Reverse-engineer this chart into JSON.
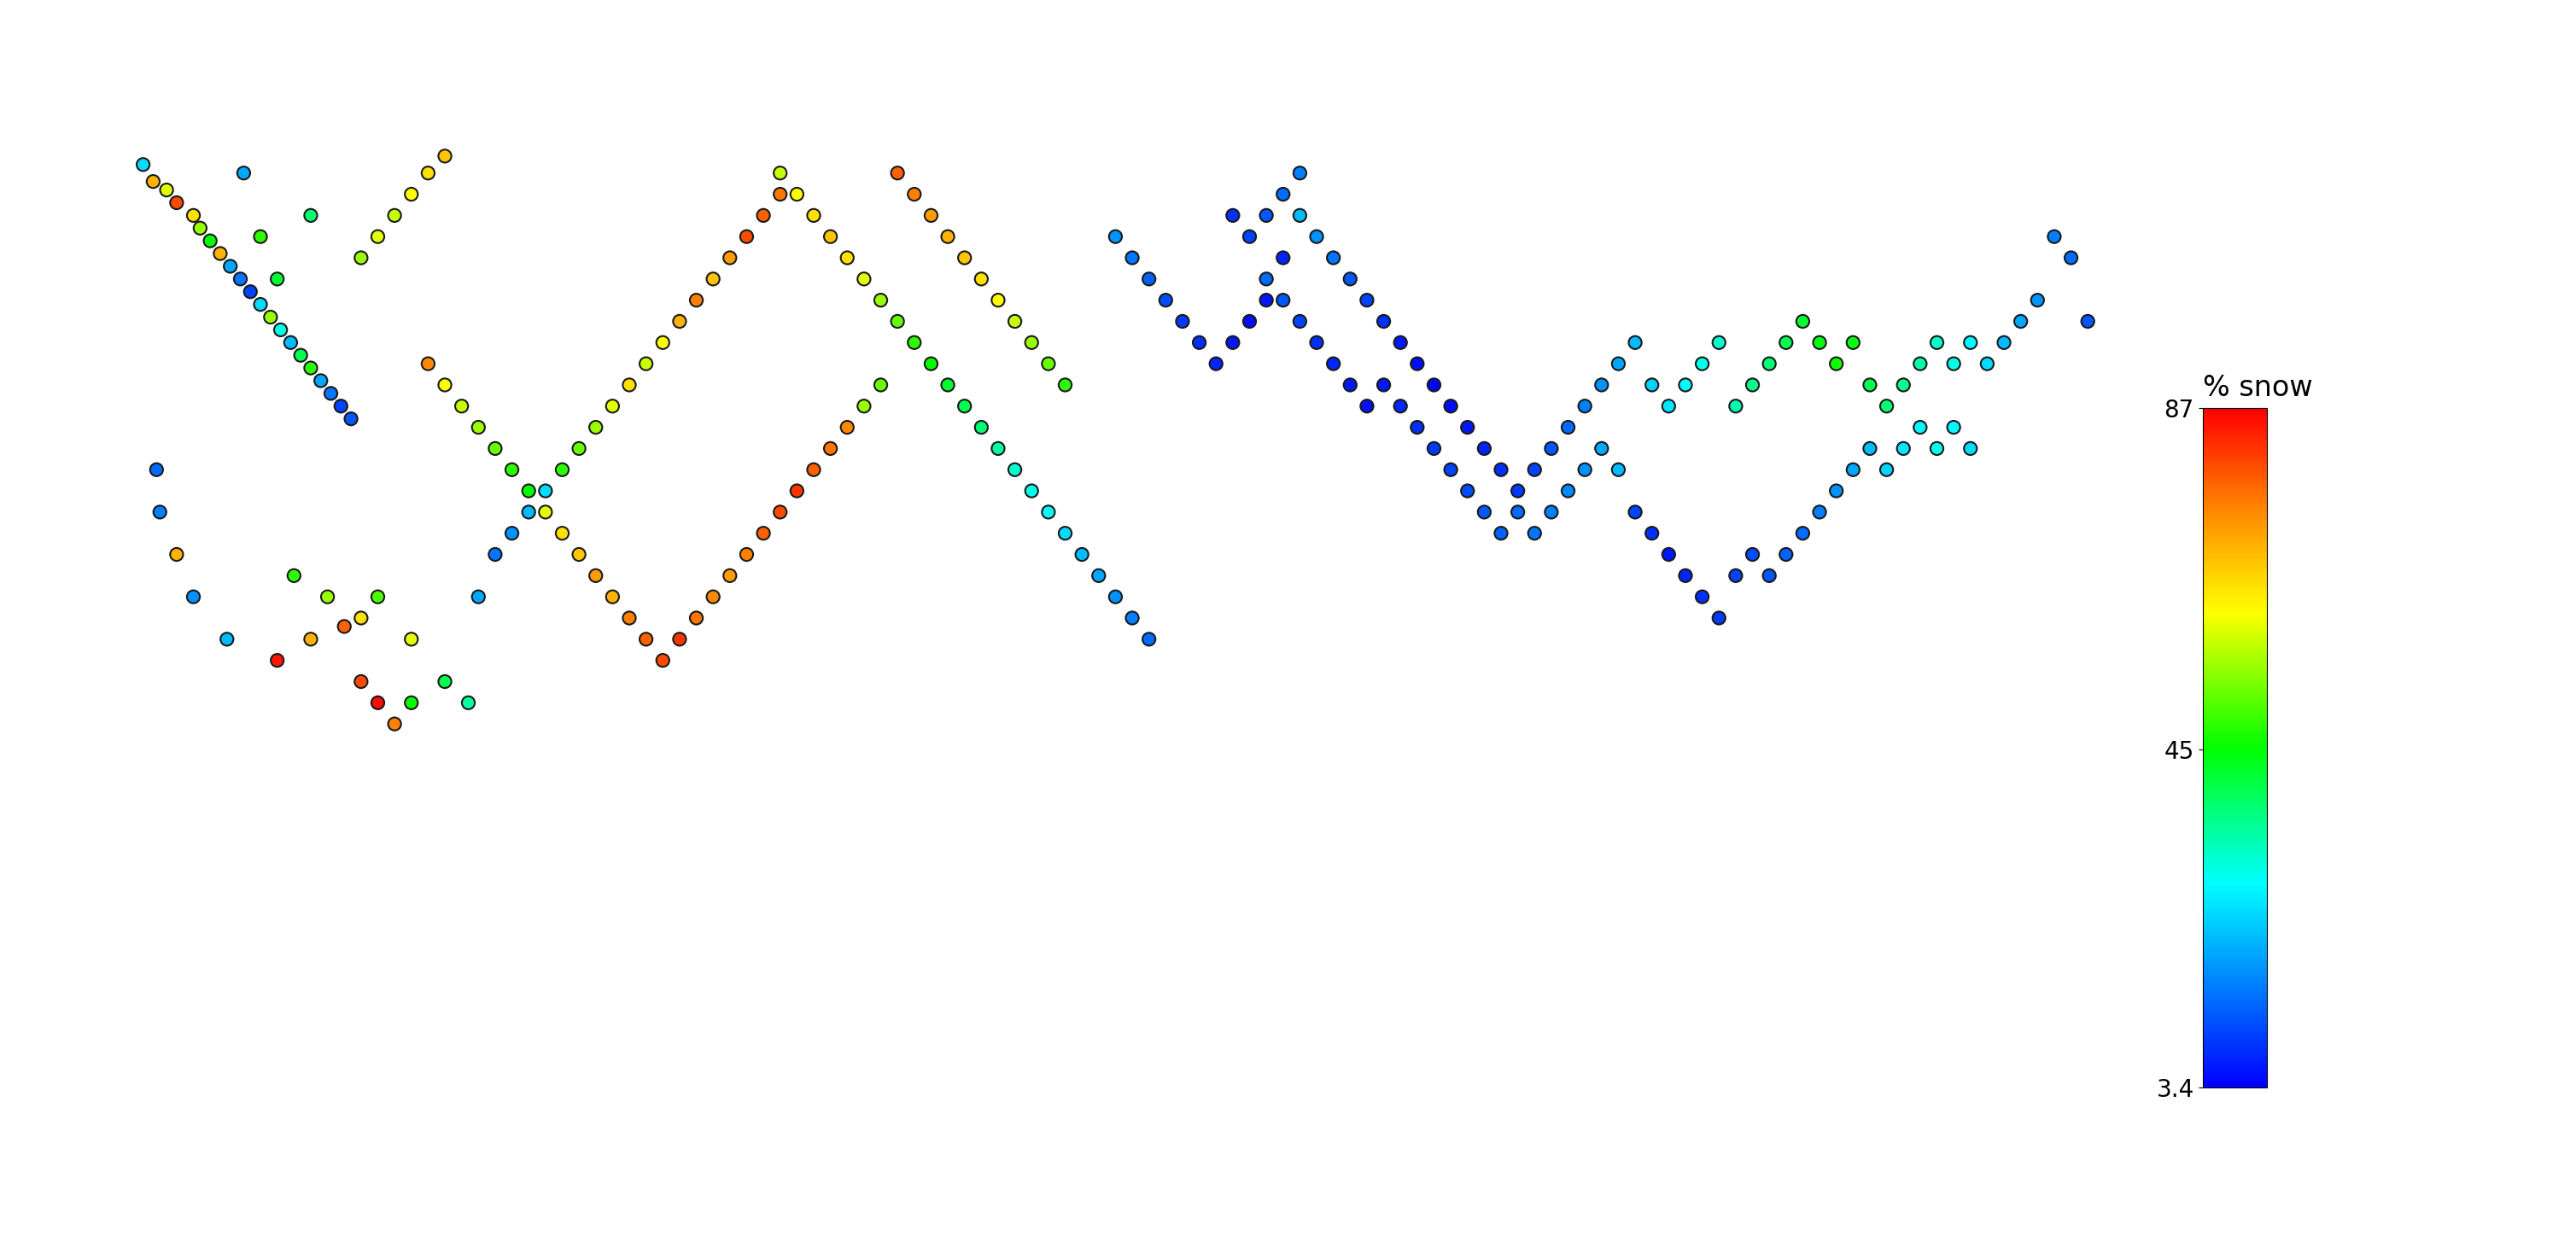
{
  "title": "",
  "colorbar_label": "% snow",
  "colorbar_ticks": [
    3.4,
    45,
    87
  ],
  "colorbar_ticklabels": [
    "3.4",
    "45",
    "87"
  ],
  "vmin": 3.4,
  "vmax": 87,
  "background_color": "#c8c8c8",
  "marker_size": 120,
  "marker_edgecolor": "#1a1a1a",
  "marker_edgewidth": 1.5,
  "map_facecolor": "#c8c8c8",
  "points": [
    [
      -124.5,
      48.7,
      25
    ],
    [
      -124.2,
      48.3,
      70
    ],
    [
      -123.8,
      48.1,
      60
    ],
    [
      -123.5,
      47.8,
      80
    ],
    [
      -123.0,
      47.5,
      65
    ],
    [
      -122.8,
      47.2,
      55
    ],
    [
      -122.5,
      46.9,
      45
    ],
    [
      -122.2,
      46.6,
      70
    ],
    [
      -121.9,
      46.3,
      20
    ],
    [
      -121.6,
      46.0,
      15
    ],
    [
      -121.3,
      45.7,
      10
    ],
    [
      -121.0,
      45.4,
      25
    ],
    [
      -120.7,
      45.1,
      55
    ],
    [
      -120.4,
      44.8,
      30
    ],
    [
      -120.1,
      44.5,
      22
    ],
    [
      -119.8,
      44.2,
      40
    ],
    [
      -119.5,
      43.9,
      48
    ],
    [
      -119.2,
      43.6,
      20
    ],
    [
      -118.9,
      43.3,
      15
    ],
    [
      -118.6,
      43.0,
      10
    ],
    [
      -118.3,
      42.7,
      12
    ],
    [
      -124.1,
      41.5,
      14
    ],
    [
      -124.0,
      40.5,
      16
    ],
    [
      -123.5,
      39.5,
      70
    ],
    [
      -123.0,
      38.5,
      18
    ],
    [
      -122.0,
      37.5,
      22
    ],
    [
      -120.5,
      37.0,
      85
    ],
    [
      -119.5,
      37.5,
      70
    ],
    [
      -118.5,
      37.8,
      78
    ],
    [
      -118.0,
      36.5,
      80
    ],
    [
      -117.5,
      36.0,
      86
    ],
    [
      -117.0,
      35.5,
      75
    ],
    [
      -116.5,
      36.0,
      45
    ],
    [
      -120.0,
      39.0,
      48
    ],
    [
      -119.0,
      38.5,
      55
    ],
    [
      -118.0,
      38.0,
      65
    ],
    [
      -117.5,
      38.5,
      50
    ],
    [
      -116.5,
      37.5,
      60
    ],
    [
      -115.5,
      36.5,
      40
    ],
    [
      -114.8,
      36.0,
      35
    ],
    [
      -114.5,
      38.5,
      20
    ],
    [
      -114.0,
      39.5,
      15
    ],
    [
      -113.5,
      40.0,
      18
    ],
    [
      -113.0,
      40.5,
      22
    ],
    [
      -112.5,
      41.0,
      25
    ],
    [
      -112.0,
      41.5,
      48
    ],
    [
      -111.5,
      42.0,
      52
    ],
    [
      -111.0,
      42.5,
      55
    ],
    [
      -110.5,
      43.0,
      60
    ],
    [
      -110.0,
      43.5,
      65
    ],
    [
      -109.5,
      44.0,
      58
    ],
    [
      -109.0,
      44.5,
      62
    ],
    [
      -108.5,
      45.0,
      70
    ],
    [
      -108.0,
      45.5,
      75
    ],
    [
      -107.5,
      46.0,
      68
    ],
    [
      -107.0,
      46.5,
      72
    ],
    [
      -106.5,
      47.0,
      80
    ],
    [
      -106.0,
      47.5,
      78
    ],
    [
      -105.5,
      48.0,
      76
    ],
    [
      -116.0,
      44.0,
      74
    ],
    [
      -115.5,
      43.5,
      62
    ],
    [
      -115.0,
      43.0,
      58
    ],
    [
      -114.5,
      42.5,
      55
    ],
    [
      -114.0,
      42.0,
      52
    ],
    [
      -113.5,
      41.5,
      48
    ],
    [
      -113.0,
      41.0,
      45
    ],
    [
      -112.5,
      40.5,
      60
    ],
    [
      -112.0,
      40.0,
      65
    ],
    [
      -111.5,
      39.5,
      68
    ],
    [
      -111.0,
      39.0,
      72
    ],
    [
      -110.5,
      38.5,
      70
    ],
    [
      -110.0,
      38.0,
      75
    ],
    [
      -109.5,
      37.5,
      78
    ],
    [
      -109.0,
      37.0,
      80
    ],
    [
      -108.5,
      37.5,
      82
    ],
    [
      -108.0,
      38.0,
      76
    ],
    [
      -107.5,
      38.5,
      74
    ],
    [
      -107.0,
      39.0,
      72
    ],
    [
      -106.5,
      39.5,
      75
    ],
    [
      -106.0,
      40.0,
      78
    ],
    [
      -105.5,
      40.5,
      80
    ],
    [
      -105.0,
      41.0,
      82
    ],
    [
      -104.5,
      41.5,
      78
    ],
    [
      -104.0,
      42.0,
      76
    ],
    [
      -103.5,
      42.5,
      74
    ],
    [
      -103.0,
      43.0,
      55
    ],
    [
      -102.5,
      43.5,
      52
    ],
    [
      -118.0,
      46.5,
      55
    ],
    [
      -117.5,
      47.0,
      60
    ],
    [
      -117.0,
      47.5,
      58
    ],
    [
      -116.5,
      48.0,
      62
    ],
    [
      -116.0,
      48.5,
      65
    ],
    [
      -115.5,
      48.9,
      68
    ],
    [
      -121.5,
      48.5,
      20
    ],
    [
      -121.0,
      47.0,
      48
    ],
    [
      -120.5,
      46.0,
      42
    ],
    [
      -119.5,
      47.5,
      38
    ],
    [
      -105.5,
      48.5,
      58
    ],
    [
      -105.0,
      48.0,
      62
    ],
    [
      -104.5,
      47.5,
      65
    ],
    [
      -104.0,
      47.0,
      68
    ],
    [
      -103.5,
      46.5,
      65
    ],
    [
      -103.0,
      46.0,
      60
    ],
    [
      -102.5,
      45.5,
      55
    ],
    [
      -102.0,
      45.0,
      52
    ],
    [
      -101.5,
      44.5,
      48
    ],
    [
      -101.0,
      44.0,
      45
    ],
    [
      -100.5,
      43.5,
      42
    ],
    [
      -100.0,
      43.0,
      40
    ],
    [
      -99.5,
      42.5,
      38
    ],
    [
      -99.0,
      42.0,
      35
    ],
    [
      -98.5,
      41.5,
      32
    ],
    [
      -98.0,
      41.0,
      30
    ],
    [
      -97.5,
      40.5,
      28
    ],
    [
      -97.0,
      40.0,
      25
    ],
    [
      -96.5,
      39.5,
      22
    ],
    [
      -96.0,
      39.0,
      20
    ],
    [
      -95.5,
      38.5,
      18
    ],
    [
      -95.0,
      38.0,
      16
    ],
    [
      -94.5,
      37.5,
      14
    ],
    [
      -97.0,
      43.5,
      48
    ],
    [
      -97.5,
      44.0,
      52
    ],
    [
      -98.0,
      44.5,
      55
    ],
    [
      -98.5,
      45.0,
      58
    ],
    [
      -99.0,
      45.5,
      62
    ],
    [
      -99.5,
      46.0,
      65
    ],
    [
      -100.0,
      46.5,
      68
    ],
    [
      -100.5,
      47.0,
      70
    ],
    [
      -101.0,
      47.5,
      72
    ],
    [
      -101.5,
      48.0,
      75
    ],
    [
      -102.0,
      48.5,
      78
    ],
    [
      -90.0,
      47.5,
      22
    ],
    [
      -89.5,
      47.0,
      18
    ],
    [
      -89.0,
      46.5,
      15
    ],
    [
      -88.5,
      46.0,
      12
    ],
    [
      -88.0,
      45.5,
      10
    ],
    [
      -87.5,
      45.0,
      8
    ],
    [
      -87.0,
      44.5,
      6
    ],
    [
      -86.5,
      44.0,
      5
    ],
    [
      -86.0,
      43.5,
      4
    ],
    [
      -85.5,
      43.0,
      5
    ],
    [
      -85.0,
      42.5,
      6
    ],
    [
      -84.5,
      42.0,
      7
    ],
    [
      -84.0,
      41.5,
      8
    ],
    [
      -83.5,
      41.0,
      9
    ],
    [
      -83.0,
      41.5,
      10
    ],
    [
      -82.5,
      42.0,
      12
    ],
    [
      -82.0,
      42.5,
      14
    ],
    [
      -81.5,
      43.0,
      16
    ],
    [
      -81.0,
      43.5,
      18
    ],
    [
      -80.5,
      44.0,
      20
    ],
    [
      -80.0,
      44.5,
      22
    ],
    [
      -79.5,
      43.5,
      24
    ],
    [
      -79.0,
      43.0,
      26
    ],
    [
      -78.5,
      43.5,
      28
    ],
    [
      -78.0,
      44.0,
      30
    ],
    [
      -77.5,
      44.5,
      32
    ],
    [
      -77.0,
      43.0,
      34
    ],
    [
      -76.5,
      43.5,
      36
    ],
    [
      -76.0,
      44.0,
      38
    ],
    [
      -75.5,
      44.5,
      40
    ],
    [
      -75.0,
      45.0,
      42
    ],
    [
      -74.5,
      44.5,
      44
    ],
    [
      -74.0,
      44.0,
      46
    ],
    [
      -73.5,
      44.5,
      44
    ],
    [
      -73.0,
      43.5,
      40
    ],
    [
      -72.5,
      43.0,
      38
    ],
    [
      -72.0,
      43.5,
      36
    ],
    [
      -71.5,
      44.0,
      34
    ],
    [
      -71.0,
      44.5,
      32
    ],
    [
      -70.5,
      44.0,
      30
    ],
    [
      -70.0,
      44.5,
      28
    ],
    [
      -69.5,
      44.0,
      25
    ],
    [
      -69.0,
      44.5,
      22
    ],
    [
      -68.5,
      45.0,
      20
    ],
    [
      -68.0,
      45.5,
      18
    ],
    [
      -67.5,
      47.0,
      16
    ],
    [
      -67.0,
      46.5,
      14
    ],
    [
      -66.5,
      45.0,
      12
    ],
    [
      -80.0,
      40.5,
      10
    ],
    [
      -79.5,
      40.0,
      8
    ],
    [
      -79.0,
      39.5,
      6
    ],
    [
      -78.5,
      39.0,
      7
    ],
    [
      -78.0,
      38.5,
      8
    ],
    [
      -77.5,
      38.0,
      9
    ],
    [
      -77.0,
      39.0,
      10
    ],
    [
      -76.5,
      39.5,
      11
    ],
    [
      -76.0,
      39.0,
      12
    ],
    [
      -75.5,
      39.5,
      13
    ],
    [
      -75.0,
      40.0,
      14
    ],
    [
      -74.5,
      40.5,
      16
    ],
    [
      -74.0,
      41.0,
      18
    ],
    [
      -73.5,
      41.5,
      20
    ],
    [
      -73.0,
      42.0,
      22
    ],
    [
      -72.5,
      41.5,
      24
    ],
    [
      -72.0,
      42.0,
      26
    ],
    [
      -71.5,
      42.5,
      28
    ],
    [
      -71.0,
      42.0,
      30
    ],
    [
      -70.5,
      42.5,
      28
    ],
    [
      -70.0,
      42.0,
      25
    ],
    [
      -91.0,
      46.0,
      14
    ],
    [
      -90.5,
      45.5,
      12
    ],
    [
      -90.0,
      45.0,
      10
    ],
    [
      -89.5,
      44.5,
      8
    ],
    [
      -89.0,
      44.0,
      7
    ],
    [
      -88.5,
      43.5,
      6
    ],
    [
      -88.0,
      43.0,
      5
    ],
    [
      -87.5,
      43.5,
      6
    ],
    [
      -87.0,
      43.0,
      7
    ],
    [
      -86.5,
      42.5,
      8
    ],
    [
      -86.0,
      42.0,
      9
    ],
    [
      -85.5,
      41.5,
      10
    ],
    [
      -85.0,
      41.0,
      11
    ],
    [
      -84.5,
      40.5,
      12
    ],
    [
      -84.0,
      40.0,
      13
    ],
    [
      -83.5,
      40.5,
      14
    ],
    [
      -83.0,
      40.0,
      15
    ],
    [
      -82.5,
      40.5,
      16
    ],
    [
      -82.0,
      41.0,
      17
    ],
    [
      -81.5,
      41.5,
      18
    ],
    [
      -81.0,
      42.0,
      20
    ],
    [
      -80.5,
      41.5,
      22
    ],
    [
      -95.5,
      47.0,
      18
    ],
    [
      -95.0,
      46.5,
      15
    ],
    [
      -94.5,
      46.0,
      13
    ],
    [
      -94.0,
      45.5,
      11
    ],
    [
      -93.5,
      45.0,
      9
    ],
    [
      -93.0,
      44.5,
      8
    ],
    [
      -92.5,
      44.0,
      7
    ],
    [
      -92.0,
      44.5,
      6
    ],
    [
      -91.5,
      45.0,
      5
    ],
    [
      -91.0,
      45.5,
      6
    ],
    [
      -90.5,
      46.5,
      7
    ],
    [
      -92.0,
      47.5,
      8
    ],
    [
      -91.5,
      47.0,
      10
    ],
    [
      -91.0,
      47.5,
      12
    ],
    [
      -90.5,
      48.0,
      14
    ],
    [
      -90.0,
      48.5,
      16
    ]
  ]
}
